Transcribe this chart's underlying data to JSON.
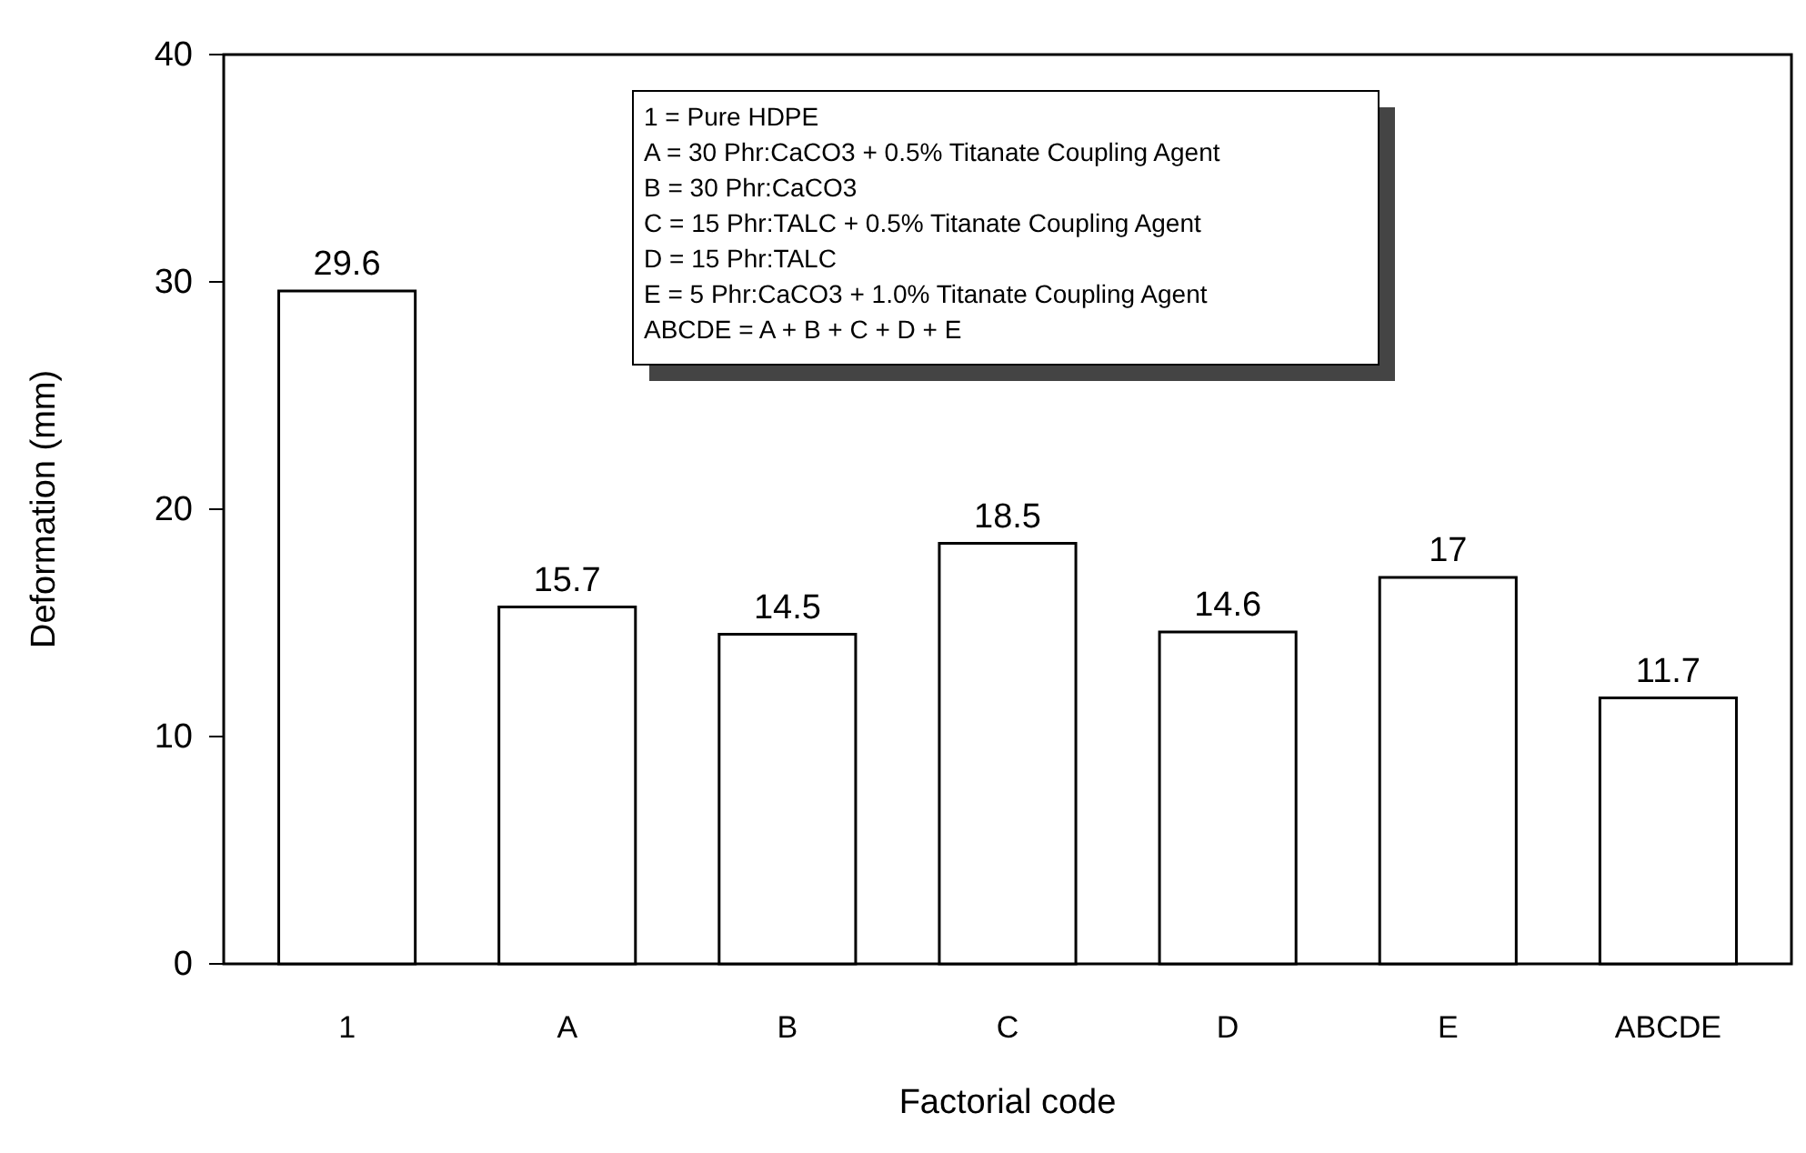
{
  "chart_data": {
    "type": "bar",
    "xlabel": "Factorial code",
    "ylabel": "Deformation (mm)",
    "categories": [
      "1",
      "A",
      "B",
      "C",
      "D",
      "E",
      "ABCDE"
    ],
    "values": [
      29.6,
      15.7,
      14.5,
      18.5,
      14.6,
      17,
      11.7
    ],
    "color": "#ffffff",
    "ylim": [
      0,
      40
    ],
    "yticks": [
      0,
      10,
      20,
      30,
      40
    ],
    "data_labels": true,
    "grid": false,
    "annotations": [
      "1 =  Pure HDPE",
      "A = 30 Phr:CaCO3 + 0.5% Titanate Coupling Agent",
      "B = 30 Phr:CaCO3",
      "C = 15 Phr:TALC + 0.5% Titanate Coupling Agent",
      "D = 15 Phr:TALC",
      "E = 5 Phr:CaCO3 + 1.0% Titanate Coupling Agent",
      "ABCDE = A + B + C + D + E"
    ]
  }
}
